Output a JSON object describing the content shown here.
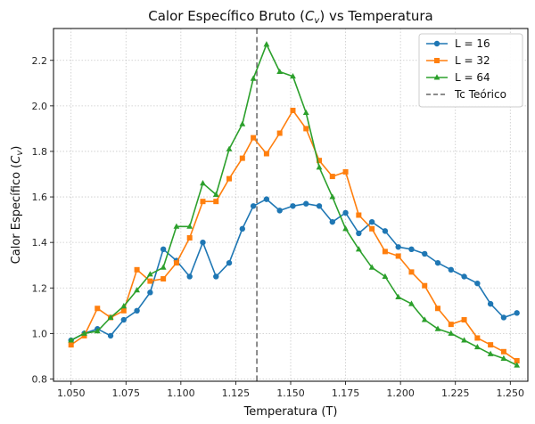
{
  "chart_data": {
    "type": "line",
    "title": "Calor Específico Bruto (C_v) vs Temperatura",
    "title_main": "Calor Específico Bruto (",
    "title_symbol": "C",
    "title_subscript": "v",
    "title_rest": ") vs Temperatura",
    "xlabel": "Temperatura (T)",
    "ylabel": "Calor Específico (C_v)",
    "ylabel_main": "Calor Específico (",
    "ylabel_symbol": "C",
    "ylabel_subscript": "v",
    "ylabel_rest": ")",
    "xlim": [
      1.042,
      1.258
    ],
    "ylim": [
      0.79,
      2.34
    ],
    "xticks": [
      "1.050",
      "1.075",
      "1.100",
      "1.125",
      "1.150",
      "1.175",
      "1.200",
      "1.225",
      "1.250"
    ],
    "yticks": [
      "0.8",
      "1.0",
      "1.2",
      "1.4",
      "1.6",
      "1.8",
      "2.0",
      "2.2"
    ],
    "grid": true,
    "legend_position": "top-right",
    "x": [
      1.05,
      1.056,
      1.062,
      1.068,
      1.074,
      1.08,
      1.086,
      1.092,
      1.098,
      1.104,
      1.11,
      1.116,
      1.122,
      1.128,
      1.133,
      1.139,
      1.145,
      1.151,
      1.157,
      1.163,
      1.169,
      1.175,
      1.181,
      1.187,
      1.193,
      1.199,
      1.205,
      1.211,
      1.217,
      1.223,
      1.229,
      1.235,
      1.241,
      1.247,
      1.253
    ],
    "series": [
      {
        "name": "L = 16",
        "color": "#1f77b4",
        "marker": "circle",
        "values": [
          0.97,
          1.0,
          1.02,
          0.99,
          1.06,
          1.1,
          1.18,
          1.37,
          1.32,
          1.25,
          1.4,
          1.25,
          1.31,
          1.46,
          1.56,
          1.59,
          1.54,
          1.56,
          1.57,
          1.56,
          1.49,
          1.53,
          1.44,
          1.49,
          1.45,
          1.38,
          1.37,
          1.35,
          1.31,
          1.28,
          1.25,
          1.22,
          1.13,
          1.07,
          1.09
        ]
      },
      {
        "name": "L = 32",
        "color": "#ff7f0e",
        "marker": "square",
        "values": [
          0.95,
          0.99,
          1.11,
          1.07,
          1.1,
          1.28,
          1.23,
          1.24,
          1.31,
          1.42,
          1.58,
          1.58,
          1.68,
          1.77,
          1.86,
          1.79,
          1.88,
          1.98,
          1.9,
          1.76,
          1.69,
          1.71,
          1.52,
          1.46,
          1.36,
          1.34,
          1.27,
          1.21,
          1.11,
          1.04,
          1.06,
          0.98,
          0.95,
          0.92,
          0.88
        ]
      },
      {
        "name": "L = 64",
        "color": "#2ca02c",
        "marker": "triangle",
        "values": [
          0.97,
          1.0,
          1.01,
          1.07,
          1.12,
          1.19,
          1.26,
          1.29,
          1.47,
          1.47,
          1.66,
          1.61,
          1.81,
          1.92,
          2.12,
          2.27,
          2.15,
          2.13,
          1.97,
          1.73,
          1.6,
          1.46,
          1.37,
          1.29,
          1.25,
          1.16,
          1.13,
          1.06,
          1.02,
          1.0,
          0.97,
          0.94,
          0.91,
          0.89,
          0.86
        ]
      }
    ],
    "reference_line": {
      "name": "Tc Teórico",
      "x": 1.1346,
      "color": "#666666",
      "style": "dashed"
    }
  }
}
